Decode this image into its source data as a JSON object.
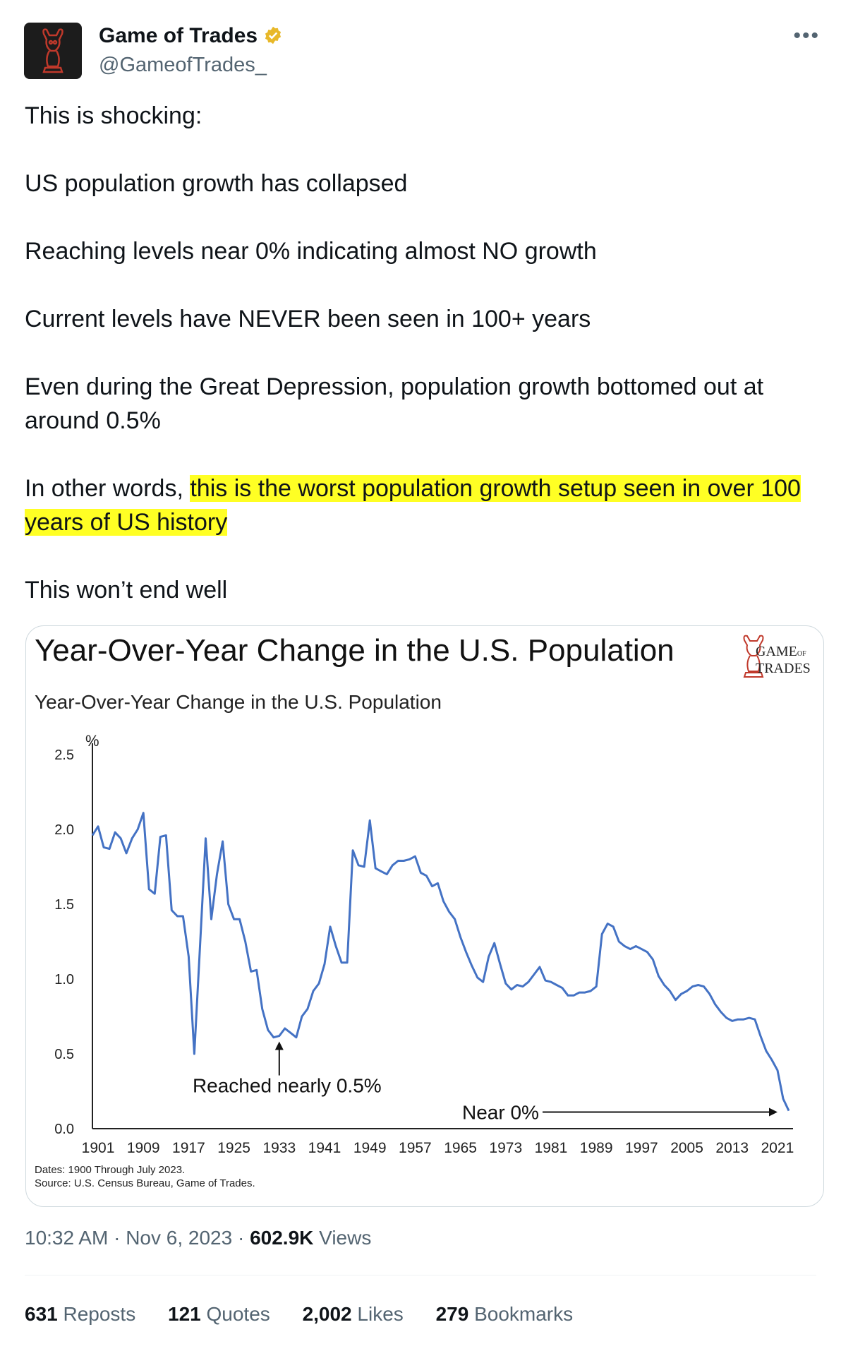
{
  "author": {
    "name": "Game of Trades",
    "handle": "@GameofTrades_",
    "verified_color": "#e8b829"
  },
  "more_label": "•••",
  "tweet": {
    "paragraphs": [
      "This is shocking:",
      "US population growth has collapsed",
      "Reaching levels near 0% indicating almost NO growth",
      "Current levels have NEVER been seen in 100+ years",
      "Even during the Great Depression, population growth bottomed out at around 0.5%"
    ],
    "p6_lead": "In other words, ",
    "p6_highlight": "this is the worst population growth setup seen in over 100 years of US history",
    "closing": "This won’t end well"
  },
  "chart_image": {
    "title": "Year-Over-Year Change in the U.S. Population",
    "logo_line1": "GAME",
    "logo_small": "OF",
    "logo_line2": "TRADES",
    "note_dates": "Dates: 1900 Through July 2023.",
    "note_source": "Source: U.S. Census Bureau, Game of Trades."
  },
  "chart_data": {
    "type": "line",
    "title": "Year-Over-Year Change in the U.S. Population",
    "ylabel": "%",
    "ylim": [
      0,
      2.5
    ],
    "yticks": [
      "0.0",
      "0.5",
      "1.0",
      "1.5",
      "2.0",
      "2.5"
    ],
    "xticks": [
      "1901",
      "1909",
      "1917",
      "1925",
      "1933",
      "1941",
      "1949",
      "1957",
      "1965",
      "1973",
      "1981",
      "1989",
      "1997",
      "2005",
      "2013",
      "2021"
    ],
    "xlim": [
      1900,
      2023
    ],
    "grid": false,
    "line_color": "#4472c4",
    "series": [
      {
        "x": [
          1900,
          1901,
          1902,
          1903,
          1904,
          1905,
          1906,
          1907,
          1908,
          1909,
          1910,
          1911,
          1912,
          1913,
          1914,
          1915,
          1916,
          1917,
          1918,
          1919,
          1920,
          1921,
          1922,
          1923,
          1924,
          1925,
          1926,
          1927,
          1928,
          1929,
          1930,
          1931,
          1932,
          1933,
          1934,
          1935,
          1936,
          1937,
          1938,
          1939,
          1940,
          1941,
          1942,
          1943,
          1944,
          1945,
          1946,
          1947,
          1948,
          1949,
          1950,
          1951,
          1952,
          1953,
          1954,
          1955,
          1956,
          1957,
          1958,
          1959,
          1960,
          1961,
          1962,
          1963,
          1964,
          1965,
          1966,
          1967,
          1968,
          1969,
          1970,
          1971,
          1972,
          1973,
          1974,
          1975,
          1976,
          1977,
          1978,
          1979,
          1980,
          1981,
          1982,
          1983,
          1984,
          1985,
          1986,
          1987,
          1988,
          1989,
          1990,
          1991,
          1992,
          1993,
          1994,
          1995,
          1996,
          1997,
          1998,
          1999,
          2000,
          2001,
          2002,
          2003,
          2004,
          2005,
          2006,
          2007,
          2008,
          2009,
          2010,
          2011,
          2012,
          2013,
          2014,
          2015,
          2016,
          2017,
          2018,
          2019,
          2020,
          2021,
          2022,
          2023
        ],
        "values": [
          1.96,
          2.02,
          1.88,
          1.87,
          1.98,
          1.94,
          1.84,
          1.94,
          2.0,
          2.11,
          1.6,
          1.57,
          1.95,
          1.96,
          1.46,
          1.42,
          1.42,
          1.15,
          0.5,
          1.22,
          1.94,
          1.4,
          1.7,
          1.92,
          1.5,
          1.4,
          1.4,
          1.25,
          1.05,
          1.06,
          0.8,
          0.66,
          0.61,
          0.62,
          0.67,
          0.64,
          0.61,
          0.75,
          0.8,
          0.92,
          0.97,
          1.1,
          1.35,
          1.22,
          1.11,
          1.11,
          1.86,
          1.76,
          1.75,
          2.06,
          1.74,
          1.72,
          1.7,
          1.76,
          1.79,
          1.79,
          1.8,
          1.82,
          1.71,
          1.69,
          1.62,
          1.64,
          1.52,
          1.45,
          1.4,
          1.28,
          1.18,
          1.09,
          1.01,
          0.98,
          1.15,
          1.24,
          1.1,
          0.97,
          0.93,
          0.96,
          0.95,
          0.98,
          1.03,
          1.08,
          0.99,
          0.98,
          0.96,
          0.94,
          0.89,
          0.89,
          0.91,
          0.91,
          0.92,
          0.95,
          1.3,
          1.37,
          1.35,
          1.25,
          1.22,
          1.2,
          1.22,
          1.2,
          1.18,
          1.13,
          1.02,
          0.96,
          0.92,
          0.86,
          0.9,
          0.92,
          0.95,
          0.96,
          0.95,
          0.9,
          0.83,
          0.78,
          0.74,
          0.72,
          0.73,
          0.73,
          0.74,
          0.73,
          0.62,
          0.52,
          0.46,
          0.39,
          0.2,
          0.12
        ]
      }
    ],
    "annotations": [
      {
        "text": "Reached nearly 0.5%",
        "x": 1933,
        "y": 0.62
      },
      {
        "text": "Near 0%",
        "x": 2023,
        "y": 0.12
      }
    ],
    "notes": [
      "Dates: 1900 Through July 2023.",
      "Source: U.S. Census Bureau, Game of Trades."
    ]
  },
  "timestamp": {
    "time": "10:32 AM",
    "separator": " · ",
    "date": "Nov 6, 2023",
    "views_count": "602.9K",
    "views_label": " Views"
  },
  "stats": {
    "reposts_count": "631",
    "reposts_label": " Reposts",
    "quotes_count": "121",
    "quotes_label": " Quotes",
    "likes_count": "2,002",
    "likes_label": " Likes",
    "bookmarks_count": "279",
    "bookmarks_label": " Bookmarks"
  }
}
